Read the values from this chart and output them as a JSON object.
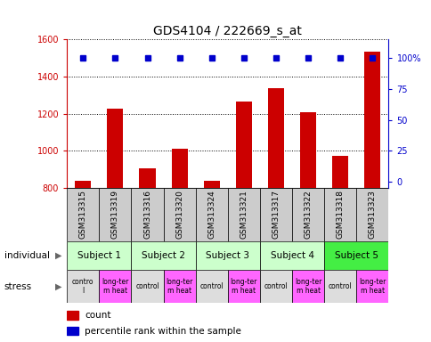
{
  "title": "GDS4104 / 222669_s_at",
  "samples": [
    "GSM313315",
    "GSM313319",
    "GSM313316",
    "GSM313320",
    "GSM313324",
    "GSM313321",
    "GSM313317",
    "GSM313322",
    "GSM313318",
    "GSM313323"
  ],
  "counts": [
    840,
    1225,
    905,
    1010,
    840,
    1265,
    1335,
    1210,
    975,
    1535
  ],
  "percentiles": [
    100,
    100,
    100,
    100,
    100,
    100,
    100,
    100,
    100,
    100
  ],
  "subjects": [
    {
      "label": "Subject 1",
      "span": [
        0,
        2
      ],
      "color": "#ccffcc"
    },
    {
      "label": "Subject 2",
      "span": [
        2,
        4
      ],
      "color": "#ccffcc"
    },
    {
      "label": "Subject 3",
      "span": [
        4,
        6
      ],
      "color": "#ccffcc"
    },
    {
      "label": "Subject 4",
      "span": [
        6,
        8
      ],
      "color": "#ccffcc"
    },
    {
      "label": "Subject 5",
      "span": [
        8,
        10
      ],
      "color": "#44ee44"
    }
  ],
  "stress": [
    {
      "label": "contro\nl",
      "span": [
        0,
        1
      ],
      "color": "#dddddd"
    },
    {
      "label": "long-ter\nm heat",
      "span": [
        1,
        2
      ],
      "color": "#ff66ff"
    },
    {
      "label": "control",
      "span": [
        2,
        3
      ],
      "color": "#dddddd"
    },
    {
      "label": "long-ter\nm heat",
      "span": [
        3,
        4
      ],
      "color": "#ff66ff"
    },
    {
      "label": "control",
      "span": [
        4,
        5
      ],
      "color": "#dddddd"
    },
    {
      "label": "long-ter\nm heat",
      "span": [
        5,
        6
      ],
      "color": "#ff66ff"
    },
    {
      "label": "control",
      "span": [
        6,
        7
      ],
      "color": "#dddddd"
    },
    {
      "label": "long-ter\nm heat",
      "span": [
        7,
        8
      ],
      "color": "#ff66ff"
    },
    {
      "label": "control",
      "span": [
        8,
        9
      ],
      "color": "#dddddd"
    },
    {
      "label": "long-ter\nm heat",
      "span": [
        9,
        10
      ],
      "color": "#ff66ff"
    }
  ],
  "bar_color": "#cc0000",
  "dot_color": "#0000cc",
  "ylim": [
    800,
    1600
  ],
  "yticks": [
    800,
    1000,
    1200,
    1400,
    1600
  ],
  "y2ticks": [
    0,
    25,
    50,
    75,
    100
  ],
  "y2labels": [
    "0",
    "25",
    "50",
    "75",
    "100%"
  ],
  "grid_color": "#888888",
  "sample_row_color": "#cccccc",
  "legend_count_color": "#cc0000",
  "legend_pct_color": "#0000cc",
  "bar_width": 0.5
}
